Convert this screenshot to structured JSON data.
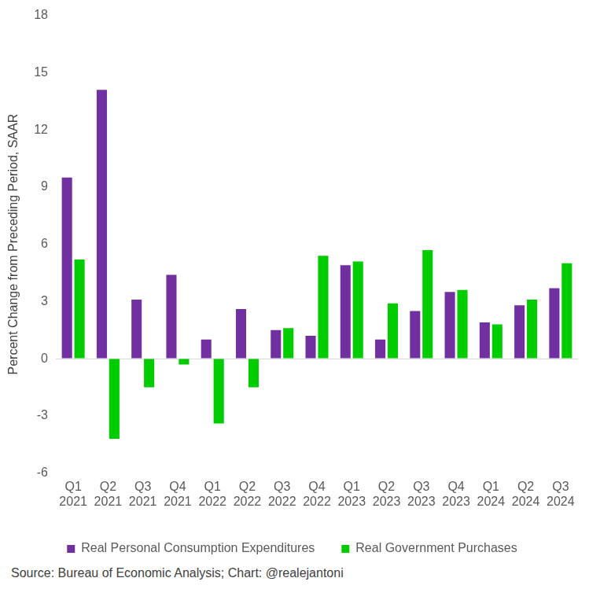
{
  "chart_data": {
    "type": "bar",
    "y_label": "Percent Change from Preceding Period, SAAR",
    "source": "Source: Bureau of Economic Analysis; Chart: @realejantoni",
    "categories": [
      [
        "Q1",
        "2021"
      ],
      [
        "Q2",
        "2021"
      ],
      [
        "Q3",
        "2021"
      ],
      [
        "Q4",
        "2021"
      ],
      [
        "Q1",
        "2022"
      ],
      [
        "Q2",
        "2022"
      ],
      [
        "Q3",
        "2022"
      ],
      [
        "Q4",
        "2022"
      ],
      [
        "Q1",
        "2023"
      ],
      [
        "Q2",
        "2023"
      ],
      [
        "Q3",
        "2023"
      ],
      [
        "Q4",
        "2023"
      ],
      [
        "Q1",
        "2024"
      ],
      [
        "Q2",
        "2024"
      ],
      [
        "Q3",
        "2024"
      ]
    ],
    "series": [
      {
        "name": "Real Personal Consumption Expenditures",
        "color": "#7030a0",
        "values": [
          9.5,
          14.1,
          3.1,
          4.4,
          1.0,
          2.6,
          1.5,
          1.2,
          4.9,
          1.0,
          2.5,
          3.5,
          1.9,
          2.8,
          3.7
        ]
      },
      {
        "name": "Real Government Purchases",
        "color": "#00cc00",
        "values": [
          5.2,
          -4.2,
          -1.5,
          -0.3,
          -3.4,
          -1.5,
          1.6,
          5.4,
          5.1,
          2.9,
          5.7,
          3.6,
          1.8,
          3.1,
          5.0
        ]
      }
    ],
    "ylim": [
      -6,
      18
    ],
    "yticks": [
      -6,
      -3,
      0,
      3,
      6,
      9,
      12,
      15,
      18
    ],
    "grid": false,
    "legend": "bottom"
  }
}
